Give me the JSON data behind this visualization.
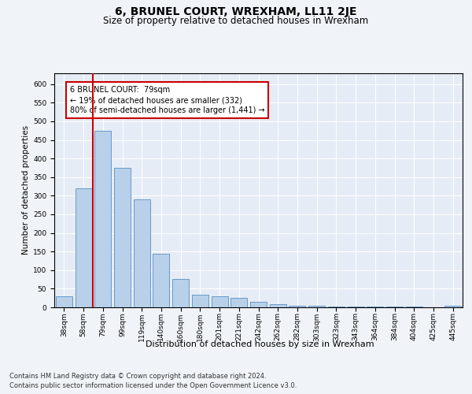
{
  "title": "6, BRUNEL COURT, WREXHAM, LL11 2JE",
  "subtitle": "Size of property relative to detached houses in Wrexham",
  "xlabel": "Distribution of detached houses by size in Wrexham",
  "ylabel": "Number of detached properties",
  "categories": [
    "38sqm",
    "58sqm",
    "79sqm",
    "99sqm",
    "119sqm",
    "140sqm",
    "160sqm",
    "180sqm",
    "201sqm",
    "221sqm",
    "242sqm",
    "262sqm",
    "282sqm",
    "303sqm",
    "323sqm",
    "343sqm",
    "364sqm",
    "384sqm",
    "404sqm",
    "425sqm",
    "445sqm"
  ],
  "values": [
    30,
    320,
    475,
    375,
    290,
    144,
    76,
    33,
    29,
    25,
    15,
    8,
    5,
    4,
    3,
    3,
    3,
    3,
    3,
    0,
    5
  ],
  "bar_color": "#b8d0ea",
  "bar_edge_color": "#6699cc",
  "red_line_x": 1.5,
  "annotation_text": "6 BRUNEL COURT:  79sqm\n← 19% of detached houses are smaller (332)\n80% of semi-detached houses are larger (1,441) →",
  "annotation_box_color": "#ffffff",
  "annotation_box_edge_color": "#cc0000",
  "ylim": [
    0,
    630
  ],
  "yticks": [
    0,
    50,
    100,
    150,
    200,
    250,
    300,
    350,
    400,
    450,
    500,
    550,
    600
  ],
  "background_color": "#f0f4f8",
  "plot_bg_color": "#e6ecf5",
  "footer_line1": "Contains HM Land Registry data © Crown copyright and database right 2024.",
  "footer_line2": "Contains public sector information licensed under the Open Government Licence v3.0.",
  "title_fontsize": 10,
  "subtitle_fontsize": 8.5,
  "xlabel_fontsize": 8,
  "ylabel_fontsize": 7.5,
  "tick_fontsize": 6.5,
  "footer_fontsize": 6,
  "annot_fontsize": 7
}
